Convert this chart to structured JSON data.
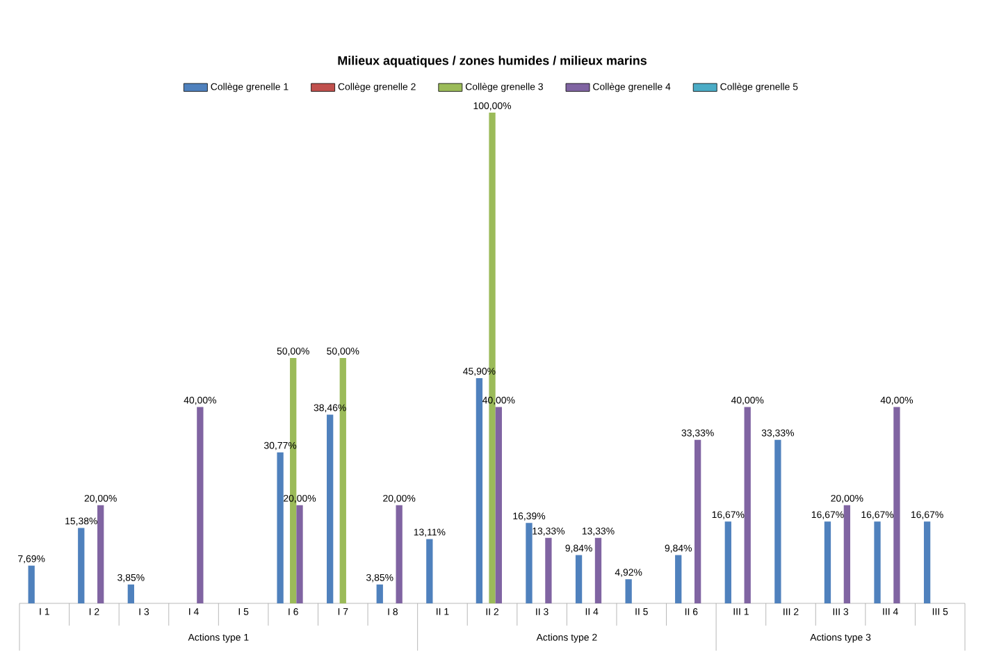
{
  "chart_data": {
    "type": "bar",
    "title": "Milieux aquatiques / zones humides / milieux marins",
    "categories": [
      "I 1",
      "I 2",
      "I 3",
      "I 4",
      "I 5",
      "I 6",
      "I 7",
      "I 8",
      "II 1",
      "II 2",
      "II 3",
      "II 4",
      "II 5",
      "II 6",
      "III 1",
      "III 2",
      "III 3",
      "III 4",
      "III 5"
    ],
    "series": [
      {
        "name": "Collège grenelle 1",
        "color": "#4f81bd",
        "values": [
          7.69,
          15.38,
          3.85,
          null,
          null,
          30.77,
          38.46,
          3.85,
          13.11,
          45.9,
          16.39,
          9.84,
          4.92,
          9.84,
          16.67,
          33.33,
          16.67,
          16.67,
          16.67
        ],
        "value_labels": [
          "7,69%",
          "15,38%",
          "3,85%",
          null,
          null,
          "30,77%",
          "38,46%",
          "3,85%",
          "13,11%",
          "45,90%",
          "16,39%",
          "9,84%",
          "4,92%",
          "9,84%",
          "16,67%",
          "33,33%",
          "16,67%",
          "16,67%",
          "16,67%"
        ]
      },
      {
        "name": "Collège grenelle 2",
        "color": "#c0504d",
        "values": [
          null,
          null,
          null,
          null,
          null,
          null,
          null,
          null,
          null,
          null,
          null,
          null,
          null,
          null,
          null,
          null,
          null,
          null,
          null
        ]
      },
      {
        "name": "Collège grenelle 3",
        "color": "#9bbb59",
        "values": [
          null,
          null,
          null,
          null,
          null,
          50,
          50,
          null,
          null,
          100,
          null,
          null,
          null,
          null,
          null,
          null,
          null,
          null,
          null
        ],
        "value_labels": [
          null,
          null,
          null,
          null,
          null,
          "50,00%",
          "50,00%",
          null,
          null,
          "100,00%",
          null,
          null,
          null,
          null,
          null,
          null,
          null,
          null,
          null
        ]
      },
      {
        "name": "Collège grenelle 4",
        "color": "#8064a2",
        "values": [
          null,
          20,
          null,
          40,
          null,
          20,
          null,
          20,
          null,
          40,
          13.33,
          13.33,
          null,
          33.33,
          40,
          null,
          20,
          40,
          null
        ],
        "value_labels": [
          null,
          "20,00%",
          null,
          "40,00%",
          null,
          "20,00%",
          null,
          "20,00%",
          null,
          "40,00%",
          "13,33%",
          "13,33%",
          null,
          "33,33%",
          "40,00%",
          null,
          "20,00%",
          "40,00%",
          null
        ]
      },
      {
        "name": "Collège grenelle 5",
        "color": "#4bacc6",
        "values": [
          null,
          null,
          null,
          null,
          null,
          null,
          null,
          null,
          null,
          null,
          null,
          null,
          null,
          null,
          null,
          null,
          null,
          null,
          null
        ]
      }
    ],
    "annotations": [
      "Actions type 1",
      "Actions type 2",
      "Actions type 3"
    ],
    "legend": "top",
    "tick_labels": "x"
  }
}
